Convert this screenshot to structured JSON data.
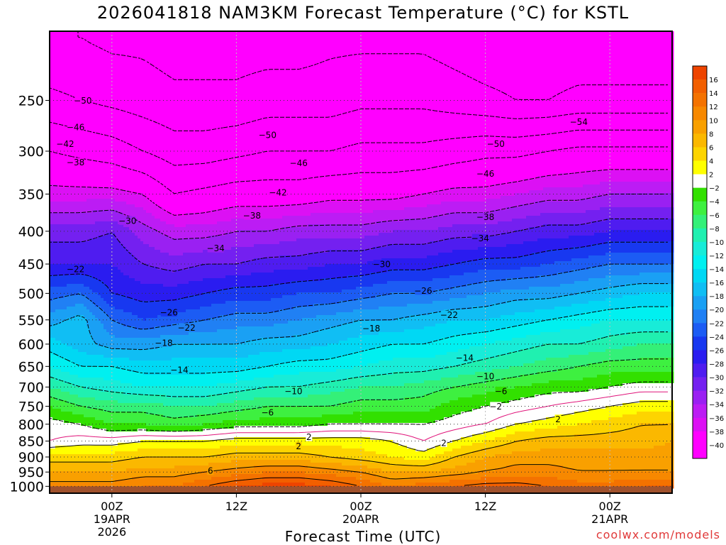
{
  "title": "2026041818 NAM3KM Forecast Temperature (°C) for KSTL",
  "xlabel": "Forecast Time (UTC)",
  "credit": "coolwx.com/models",
  "chart_data": {
    "type": "heatmap",
    "title": "2026041818 NAM3KM Forecast Temperature (°C) for KSTL",
    "xlabel": "Forecast Time (UTC)",
    "ylabel": "",
    "x_ticks": [
      {
        "hour": 6,
        "label": "00Z",
        "sub": [
          "19APR",
          "2026"
        ]
      },
      {
        "hour": 18,
        "label": "12Z",
        "sub": []
      },
      {
        "hour": 30,
        "label": "00Z",
        "sub": [
          "20APR"
        ]
      },
      {
        "hour": 42,
        "label": "12Z",
        "sub": []
      },
      {
        "hour": 54,
        "label": "00Z",
        "sub": [
          "21APR"
        ]
      }
    ],
    "x_range_hours": [
      0,
      60
    ],
    "y_axis": "pressure (hPa), log scale",
    "y_range": [
      1025,
      195
    ],
    "y_ticks": [
      250,
      300,
      350,
      400,
      450,
      500,
      550,
      600,
      650,
      700,
      750,
      800,
      850,
      900,
      950,
      1000
    ],
    "ground_color": "#a0522d",
    "grid": "dotted",
    "colorbar": {
      "placement": "right",
      "ticks": [
        16,
        14,
        12,
        10,
        8,
        6,
        4,
        2,
        -2,
        -4,
        -6,
        -8,
        -10,
        -12,
        -14,
        -16,
        -18,
        -20,
        -22,
        -24,
        -26,
        -28,
        -30,
        -32,
        -34,
        -36,
        -38,
        -40
      ],
      "levels": [
        {
          "min": 16,
          "color": "#ee4400"
        },
        {
          "min": 14,
          "color": "#f25f00"
        },
        {
          "min": 12,
          "color": "#f47200"
        },
        {
          "min": 10,
          "color": "#f78800"
        },
        {
          "min": 8,
          "color": "#f9a000"
        },
        {
          "min": 6,
          "color": "#fbb800"
        },
        {
          "min": 4,
          "color": "#fdd400"
        },
        {
          "min": 2,
          "color": "#ffff00"
        },
        {
          "min": -2,
          "color": "#ffffff"
        },
        {
          "min": -4,
          "color": "#32e000"
        },
        {
          "min": -6,
          "color": "#3ef040"
        },
        {
          "min": -8,
          "color": "#34f078"
        },
        {
          "min": -10,
          "color": "#20f0b0"
        },
        {
          "min": -12,
          "color": "#18ecd8"
        },
        {
          "min": -14,
          "color": "#00f0f0"
        },
        {
          "min": -16,
          "color": "#00d8f4"
        },
        {
          "min": -18,
          "color": "#10bef4"
        },
        {
          "min": -20,
          "color": "#1aa0f4"
        },
        {
          "min": -22,
          "color": "#2080f4"
        },
        {
          "min": -24,
          "color": "#1c5cf4"
        },
        {
          "min": -26,
          "color": "#1838f0"
        },
        {
          "min": -28,
          "color": "#2a1cf0"
        },
        {
          "min": -30,
          "color": "#4f1cf0"
        },
        {
          "min": -32,
          "color": "#7420f0"
        },
        {
          "min": -34,
          "color": "#9a20f2"
        },
        {
          "min": -36,
          "color": "#bc1cf4"
        },
        {
          "min": -38,
          "color": "#dc10f4"
        },
        {
          "min": -40,
          "color": "#ff00ff"
        },
        {
          "min": -99,
          "color": "#ff00ff"
        }
      ]
    },
    "grid_hours": [
      0,
      3,
      6,
      9,
      12,
      15,
      18,
      21,
      24,
      27,
      30,
      33,
      36,
      39,
      42,
      45,
      48,
      51,
      54,
      57,
      60
    ],
    "levels_hpa": [
      1000,
      950,
      900,
      850,
      800,
      750,
      700,
      650,
      600,
      550,
      500,
      450,
      400,
      350,
      300,
      250,
      200
    ],
    "temperature": [
      [
        11,
        11,
        11,
        12,
        12,
        14,
        16,
        17,
        17,
        16,
        14,
        12,
        13,
        14,
        15,
        15,
        14,
        13,
        13,
        14,
        14
      ],
      [
        8,
        8,
        8,
        9,
        9,
        10,
        11,
        12,
        12,
        11,
        10,
        8,
        8,
        9,
        10,
        11,
        11,
        10,
        10,
        10,
        10
      ],
      [
        5,
        5,
        5,
        6,
        6,
        6,
        7,
        7,
        7,
        6,
        5,
        4,
        3,
        6,
        8,
        9,
        9,
        9,
        9,
        9,
        9
      ],
      [
        0,
        1,
        1,
        2,
        2,
        2,
        3,
        3,
        3,
        3,
        3,
        2,
        0,
        2,
        4,
        6,
        7,
        7,
        7,
        7,
        8
      ],
      [
        -1,
        -2,
        -4,
        -4,
        -5,
        -4,
        -3,
        -3,
        -3,
        -2,
        -2,
        -2,
        -2,
        -1,
        0,
        2,
        3,
        4,
        5,
        6,
        6
      ],
      [
        -4,
        -6,
        -7,
        -7,
        -8,
        -8,
        -7,
        -6,
        -6,
        -6,
        -5,
        -5,
        -5,
        -3,
        -2,
        -1,
        0,
        1,
        2,
        3,
        3
      ],
      [
        -8,
        -10,
        -11,
        -12,
        -12,
        -12,
        -11,
        -10,
        -10,
        -9,
        -8,
        -8,
        -7,
        -6,
        -5,
        -4,
        -3,
        -3,
        -2,
        -1,
        -1
      ],
      [
        -12,
        -14,
        -14,
        -15,
        -15,
        -15,
        -15,
        -14,
        -13,
        -13,
        -12,
        -11,
        -11,
        -10,
        -9,
        -8,
        -7,
        -6,
        -5,
        -5,
        -5
      ],
      [
        -15,
        -17,
        -19,
        -19,
        -18,
        -18,
        -18,
        -17,
        -17,
        -16,
        -15,
        -14,
        -14,
        -13,
        -12,
        -11,
        -10,
        -10,
        -9,
        -8,
        -8
      ],
      [
        -19,
        -17,
        -22,
        -24,
        -23,
        -22,
        -21,
        -21,
        -20,
        -19,
        -18,
        -18,
        -17,
        -16,
        -16,
        -15,
        -14,
        -13,
        -12,
        -12,
        -12
      ],
      [
        -23,
        -22,
        -26,
        -27,
        -27,
        -26,
        -25,
        -25,
        -24,
        -24,
        -23,
        -22,
        -22,
        -21,
        -20,
        -19,
        -19,
        -18,
        -17,
        -16,
        -16
      ],
      [
        -28,
        -28,
        -28,
        -30,
        -31,
        -30,
        -30,
        -29,
        -29,
        -28,
        -28,
        -27,
        -27,
        -26,
        -25,
        -25,
        -24,
        -23,
        -22,
        -22,
        -22
      ],
      [
        -31,
        -31,
        -30,
        -33,
        -35,
        -35,
        -34,
        -34,
        -33,
        -33,
        -33,
        -32,
        -32,
        -31,
        -31,
        -30,
        -29,
        -29,
        -28,
        -28,
        -28
      ],
      [
        -37,
        -37,
        -37,
        -38,
        -42,
        -41,
        -40,
        -40,
        -40,
        -39,
        -39,
        -39,
        -38,
        -37,
        -37,
        -36,
        -35,
        -35,
        -34,
        -34,
        -34
      ],
      [
        -42,
        -43,
        -44,
        -46,
        -48,
        -48,
        -47,
        -46,
        -46,
        -46,
        -45,
        -45,
        -45,
        -44,
        -43,
        -43,
        -42,
        -41,
        -41,
        -41,
        -41
      ],
      [
        -49,
        -50,
        -51,
        -52,
        -53,
        -53,
        -53,
        -52,
        -52,
        -52,
        -51,
        -51,
        -51,
        -52,
        -53,
        -54,
        -54,
        -53,
        -53,
        -53,
        -53
      ],
      [
        -54,
        -54,
        -55,
        -55,
        -56,
        -56,
        -56,
        -56,
        -56,
        -55,
        -55,
        -55,
        -55,
        -56,
        -57,
        -57,
        -57,
        -57,
        -57,
        -57,
        -57
      ]
    ],
    "contour_labels": [
      {
        "text": "-50",
        "hour": 3.2,
        "hpa": 250
      },
      {
        "text": "-46",
        "hour": 2.5,
        "hpa": 275
      },
      {
        "text": "-42",
        "hour": 1.5,
        "hpa": 292
      },
      {
        "text": "-38",
        "hour": 2.5,
        "hpa": 312
      },
      {
        "text": "-30",
        "hour": 7.5,
        "hpa": 385
      },
      {
        "text": "-22",
        "hour": 2.5,
        "hpa": 458
      },
      {
        "text": "-50",
        "hour": 21,
        "hpa": 283
      },
      {
        "text": "-46",
        "hour": 24,
        "hpa": 313
      },
      {
        "text": "-42",
        "hour": 22,
        "hpa": 348
      },
      {
        "text": "-38",
        "hour": 19.5,
        "hpa": 378
      },
      {
        "text": "-34",
        "hour": 16,
        "hpa": 425
      },
      {
        "text": "-26",
        "hour": 11.5,
        "hpa": 535
      },
      {
        "text": "-22",
        "hour": 13.2,
        "hpa": 565
      },
      {
        "text": "-18",
        "hour": 11,
        "hpa": 597
      },
      {
        "text": "-14",
        "hour": 12.5,
        "hpa": 658
      },
      {
        "text": "-10",
        "hour": 23.5,
        "hpa": 710
      },
      {
        "text": "-6",
        "hour": 21,
        "hpa": 767
      },
      {
        "text": "2",
        "hour": 25,
        "hpa": 837
      },
      {
        "text": "2",
        "hour": 24,
        "hpa": 865
      },
      {
        "text": "6",
        "hour": 15.5,
        "hpa": 945
      },
      {
        "text": "-54",
        "hour": 51,
        "hpa": 270
      },
      {
        "text": "-50",
        "hour": 43,
        "hpa": 292
      },
      {
        "text": "-46",
        "hour": 42,
        "hpa": 325
      },
      {
        "text": "-38",
        "hour": 42,
        "hpa": 380
      },
      {
        "text": "-34",
        "hour": 41.5,
        "hpa": 410
      },
      {
        "text": "-30",
        "hour": 32,
        "hpa": 450
      },
      {
        "text": "-26",
        "hour": 36,
        "hpa": 495
      },
      {
        "text": "-22",
        "hour": 38.5,
        "hpa": 540
      },
      {
        "text": "-18",
        "hour": 31,
        "hpa": 567
      },
      {
        "text": "-14",
        "hour": 40,
        "hpa": 630
      },
      {
        "text": "-10",
        "hour": 42,
        "hpa": 673
      },
      {
        "text": "-6",
        "hour": 43.5,
        "hpa": 710
      },
      {
        "text": "-2",
        "hour": 43,
        "hpa": 750
      },
      {
        "text": "2",
        "hour": 49,
        "hpa": 785
      },
      {
        "text": "2",
        "hour": 38,
        "hpa": 855
      }
    ]
  }
}
